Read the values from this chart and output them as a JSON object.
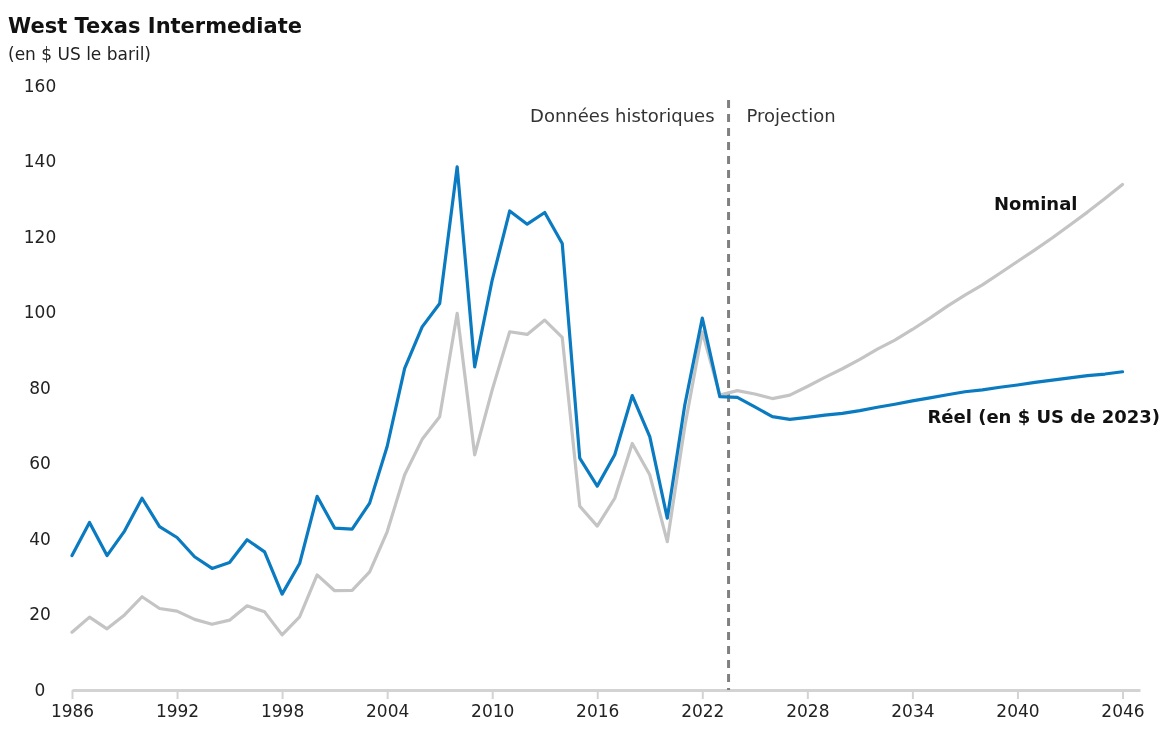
{
  "chart_data": {
    "type": "line",
    "title": "West Texas Intermediate",
    "subtitle": "(en $ US le baril)",
    "x": [
      1986,
      1987,
      1988,
      1989,
      1990,
      1991,
      1992,
      1993,
      1994,
      1995,
      1996,
      1997,
      1998,
      1999,
      2000,
      2001,
      2002,
      2003,
      2004,
      2005,
      2006,
      2007,
      2008,
      2009,
      2010,
      2011,
      2012,
      2013,
      2014,
      2015,
      2016,
      2017,
      2018,
      2019,
      2020,
      2021,
      2022,
      2023,
      2024,
      2025,
      2026,
      2027,
      2028,
      2029,
      2030,
      2031,
      2032,
      2033,
      2034,
      2035,
      2036,
      2037,
      2038,
      2039,
      2040,
      2041,
      2042,
      2043,
      2044,
      2045,
      2046
    ],
    "series": [
      {
        "name": "Nominal",
        "color": "#c4c4c4",
        "values": [
          15.3,
          19.3,
          16.2,
          19.9,
          24.7,
          21.6,
          20.9,
          18.7,
          17.4,
          18.5,
          22.3,
          20.7,
          14.6,
          19.4,
          30.5,
          26.3,
          26.4,
          31.3,
          41.9,
          57.0,
          66.4,
          72.4,
          99.8,
          62.3,
          79.5,
          94.9,
          94.2,
          98.0,
          93.4,
          48.7,
          43.4,
          50.8,
          65.3,
          57.0,
          39.3,
          69.8,
          94.9,
          78.1,
          79.3,
          78.4,
          77.2,
          78.1,
          80.4,
          82.8,
          85.1,
          87.6,
          90.3,
          92.7,
          95.5,
          98.5,
          101.7,
          104.6,
          107.3,
          110.4,
          113.5,
          116.6,
          119.8,
          123.2,
          126.6,
          130.2,
          133.9
        ]
      },
      {
        "name": "Réel (en $ US de 2023)",
        "color": "#0a7bc1",
        "values": [
          35.6,
          44.4,
          35.6,
          42.1,
          50.8,
          43.3,
          40.4,
          35.3,
          32.2,
          33.8,
          39.8,
          36.6,
          25.4,
          33.5,
          51.3,
          42.9,
          42.6,
          49.5,
          64.5,
          85.2,
          96.2,
          102.4,
          138.6,
          85.6,
          108.6,
          126.9,
          123.4,
          126.5,
          118.3,
          61.4,
          54.0,
          62.3,
          78.0,
          67.1,
          45.5,
          75.5,
          98.5,
          77.7,
          77.5,
          75.0,
          72.4,
          71.7,
          72.2,
          72.8,
          73.3,
          74.0,
          74.9,
          75.7,
          76.6,
          77.4,
          78.2,
          79.0,
          79.5,
          80.2,
          80.8,
          81.5,
          82.1,
          82.7,
          83.3,
          83.7,
          84.3
        ]
      }
    ],
    "xlim": [
      1986,
      2047
    ],
    "xticks": [
      1986,
      1992,
      1998,
      2004,
      2010,
      2016,
      2022,
      2028,
      2034,
      2040,
      2046
    ],
    "ylim": [
      0,
      160
    ],
    "yticks": [
      0,
      20,
      40,
      60,
      80,
      100,
      120,
      140,
      160
    ],
    "ref_lines": [
      {
        "axis": "x",
        "value": 2023.5,
        "color": "#808080",
        "line_style": "dashed"
      }
    ],
    "annotations": [
      "Données historiques",
      "Projection"
    ],
    "grid": false,
    "marker": "none",
    "line_style": "solid"
  }
}
